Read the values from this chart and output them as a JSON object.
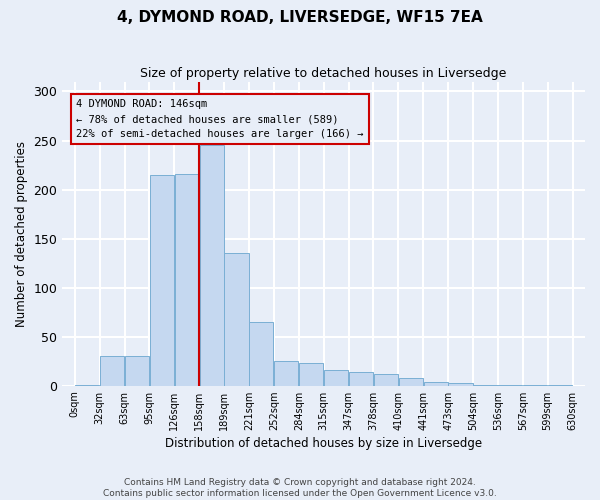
{
  "title": "4, DYMOND ROAD, LIVERSEDGE, WF15 7EA",
  "subtitle": "Size of property relative to detached houses in Liversedge",
  "xlabel": "Distribution of detached houses by size in Liversedge",
  "ylabel": "Number of detached properties",
  "bar_values": [
    1,
    30,
    30,
    215,
    216,
    245,
    135,
    65,
    25,
    23,
    16,
    14,
    12,
    8,
    4,
    3,
    1,
    1,
    1,
    1
  ],
  "bin_labels": [
    "0sqm",
    "32sqm",
    "63sqm",
    "95sqm",
    "126sqm",
    "158sqm",
    "189sqm",
    "221sqm",
    "252sqm",
    "284sqm",
    "315sqm",
    "347sqm",
    "378sqm",
    "410sqm",
    "441sqm",
    "473sqm",
    "504sqm",
    "536sqm",
    "567sqm",
    "599sqm",
    "630sqm"
  ],
  "bar_color": "#c5d8f0",
  "bar_edge_color": "#7aafd4",
  "property_line_color": "#cc0000",
  "property_line_bin_index": 5,
  "annotation_text": "4 DYMOND ROAD: 146sqm\n← 78% of detached houses are smaller (589)\n22% of semi-detached houses are larger (166) →",
  "ylim": [
    0,
    310
  ],
  "yticks": [
    0,
    50,
    100,
    150,
    200,
    250,
    300
  ],
  "background_color": "#e8eef8",
  "grid_color": "#ffffff",
  "footer_line1": "Contains HM Land Registry data © Crown copyright and database right 2024.",
  "footer_line2": "Contains public sector information licensed under the Open Government Licence v3.0."
}
